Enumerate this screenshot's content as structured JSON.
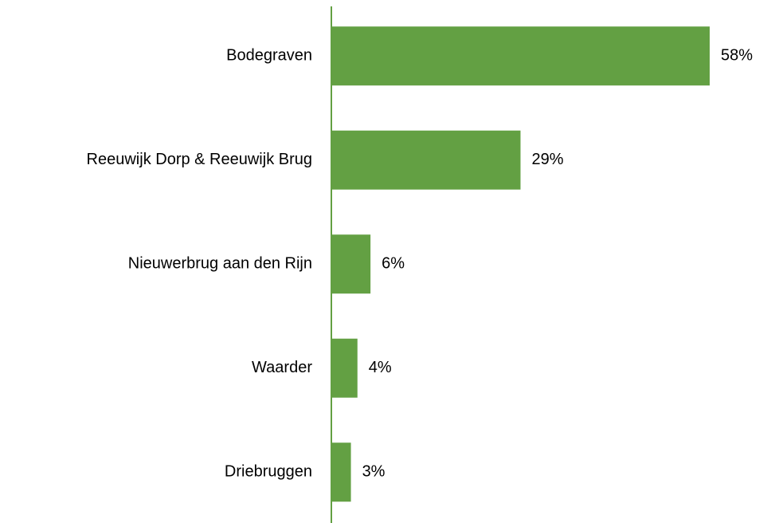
{
  "chart_data": {
    "type": "bar",
    "orientation": "horizontal",
    "categories": [
      "Bodegraven",
      "Reeuwijk Dorp & Reeuwijk Brug",
      "Nieuwerbrug aan den Rijn",
      "Waarder",
      "Driebruggen"
    ],
    "values": [
      58,
      29,
      6,
      4,
      3
    ],
    "value_labels": [
      "58%",
      "29%",
      "6%",
      "4%",
      "3%"
    ],
    "color": "#63a043"
  }
}
